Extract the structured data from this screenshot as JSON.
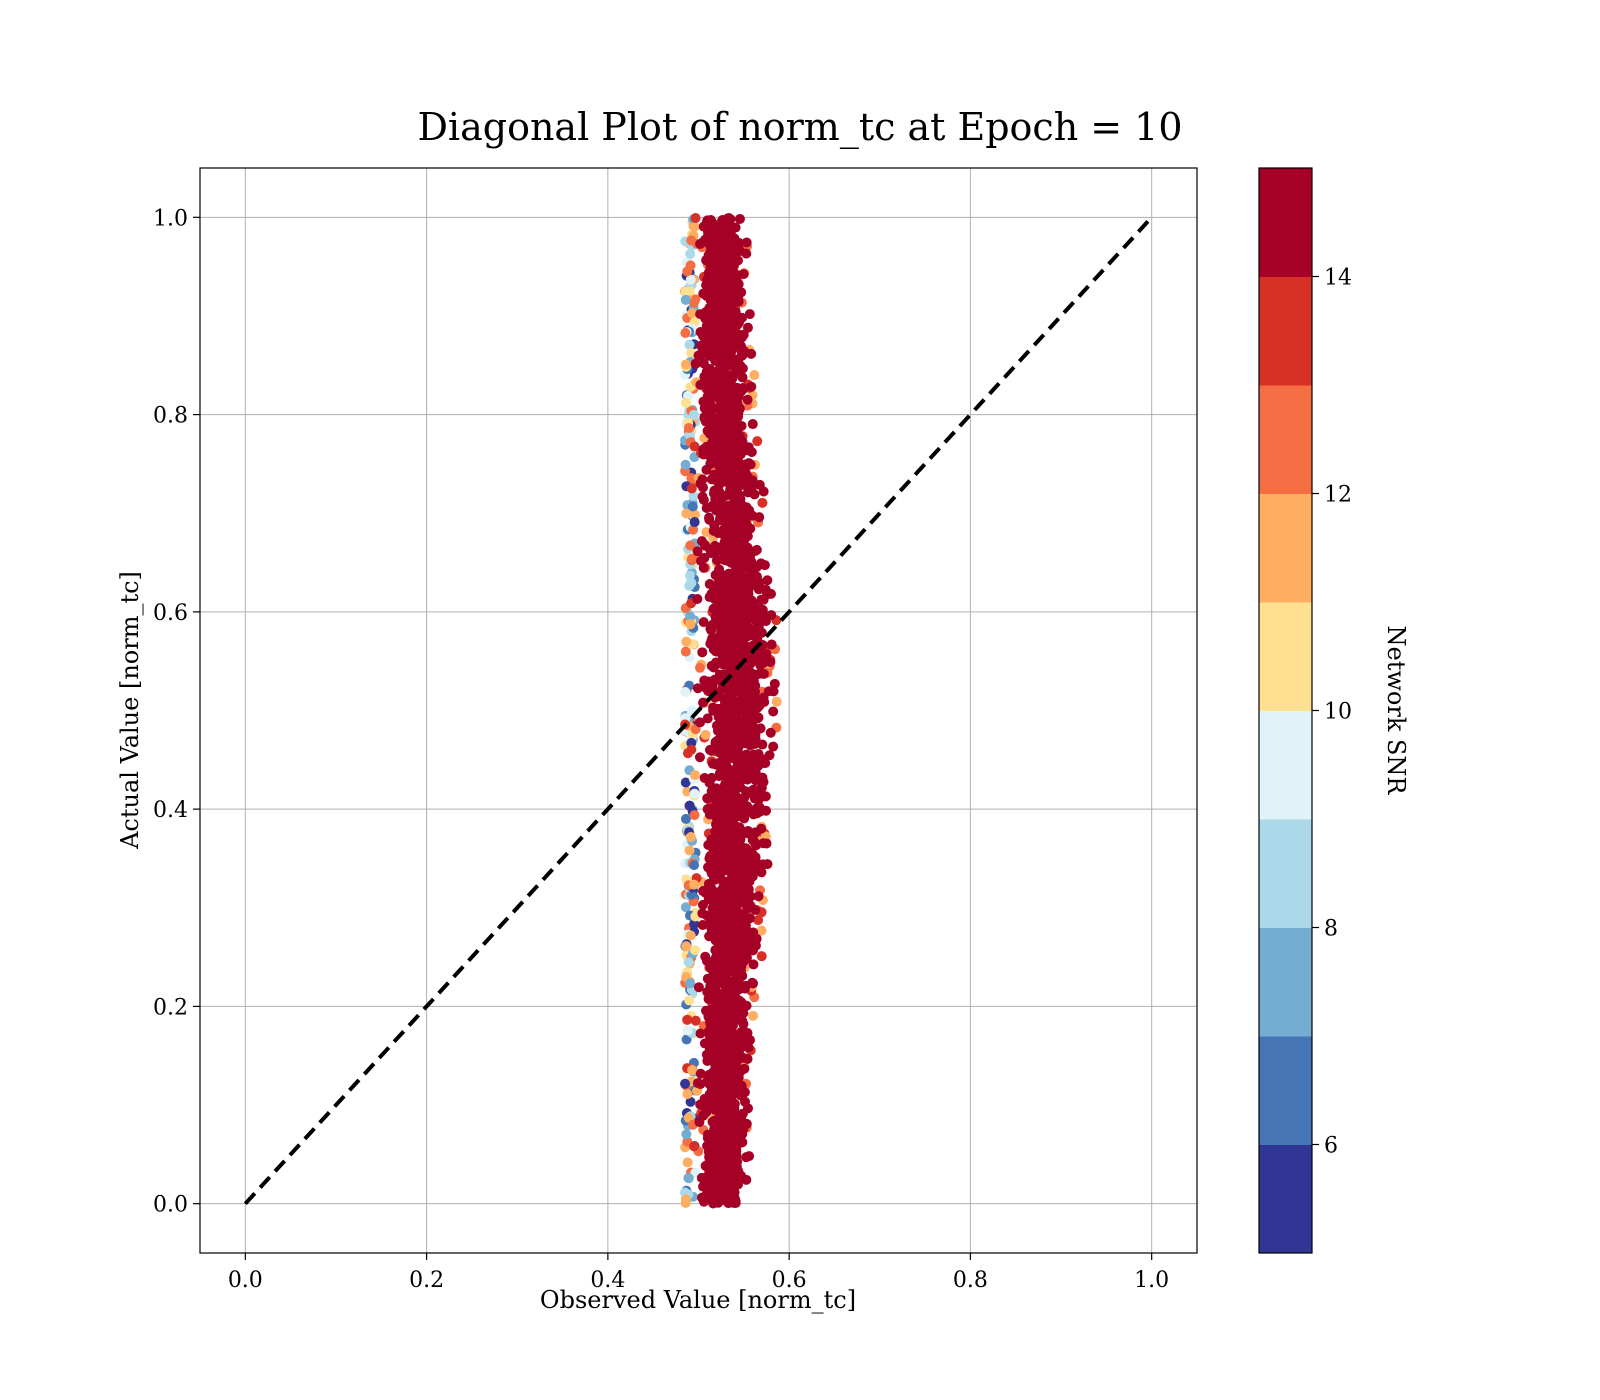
{
  "chart_data": {
    "type": "scatter",
    "title": "Diagonal Plot of norm_tc at Epoch = 10",
    "xlabel": "Observed Value [norm_tc]",
    "ylabel": "Actual Value [norm_tc]",
    "xlim": [
      -0.05,
      1.05
    ],
    "ylim": [
      -0.05,
      1.05
    ],
    "xticks": [
      "0.0",
      "0.2",
      "0.4",
      "0.6",
      "0.8",
      "1.0"
    ],
    "yticks": [
      "0.0",
      "0.2",
      "0.4",
      "0.6",
      "0.8",
      "1.0"
    ],
    "grid": true,
    "reference_line": {
      "style": "dashed",
      "color": "#000000",
      "from": [
        0.0,
        0.0
      ],
      "to": [
        1.0,
        1.0
      ]
    },
    "scatter_cloud": {
      "description_x_center": 0.525,
      "x_range_by_y": [
        {
          "y": 0.0,
          "x_min": 0.485,
          "x_max": 0.555
        },
        {
          "y": 0.2,
          "x_min": 0.485,
          "x_max": 0.565
        },
        {
          "y": 0.4,
          "x_min": 0.485,
          "x_max": 0.585
        },
        {
          "y": 0.6,
          "x_min": 0.485,
          "x_max": 0.59
        },
        {
          "y": 0.8,
          "x_min": 0.485,
          "x_max": 0.565
        },
        {
          "y": 1.0,
          "x_min": 0.485,
          "x_max": 0.555
        }
      ],
      "dominant_snr": 14.5
    },
    "colorbar": {
      "label": "Network SNR",
      "vmin": 5,
      "vmax": 15,
      "ticks": [
        "6",
        "8",
        "10",
        "12",
        "14"
      ],
      "tick_values": [
        6,
        8,
        10,
        12,
        14
      ],
      "levels": [
        5,
        6,
        7,
        8,
        9,
        10,
        11,
        12,
        13,
        14,
        15
      ],
      "colors": [
        "#313695",
        "#4575b4",
        "#74add1",
        "#abd9e9",
        "#e0f3f8",
        "#fee090",
        "#fdae61",
        "#f46d43",
        "#d73027",
        "#a50026"
      ]
    }
  }
}
